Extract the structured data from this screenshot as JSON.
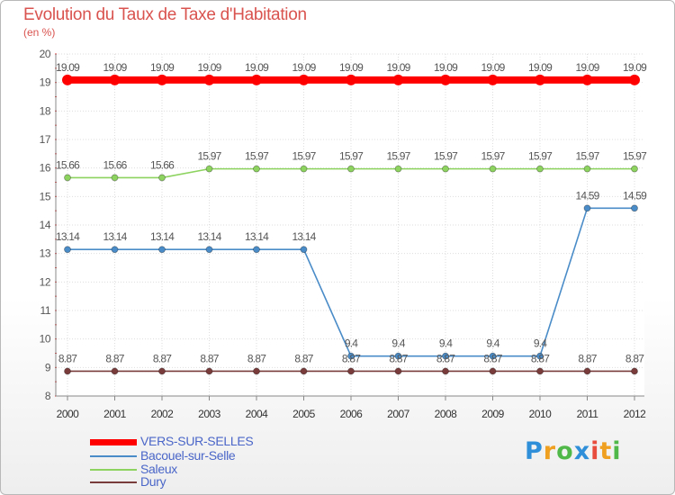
{
  "header": {
    "title": "Evolution du Taux de Taxe d'Habitation",
    "subtitle": "(en %)"
  },
  "chart_data": {
    "type": "line",
    "categories": [
      "2000",
      "2001",
      "2002",
      "2003",
      "2004",
      "2005",
      "2006",
      "2007",
      "2008",
      "2009",
      "2010",
      "2011",
      "2012"
    ],
    "ylim": [
      8,
      20
    ],
    "yticks": [
      8,
      9,
      10,
      11,
      12,
      13,
      14,
      15,
      16,
      17,
      18,
      19,
      20
    ],
    "grid": true,
    "legend_placement": "bottom-left",
    "series": [
      {
        "name": "VERS-SUR-SELLES",
        "color": "#ff0000",
        "values": [
          19.09,
          19.09,
          19.09,
          19.09,
          19.09,
          19.09,
          19.09,
          19.09,
          19.09,
          19.09,
          19.09,
          19.09,
          19.09
        ],
        "labels": [
          "19.09",
          "19.09",
          "19.09",
          "19.09",
          "19.09",
          "19.09",
          "19.09",
          "19.09",
          "19.09",
          "19.09",
          "19.09",
          "19.09",
          "19.09"
        ]
      },
      {
        "name": "Bacouel-sur-Selle",
        "color": "#4a8cc8",
        "values": [
          13.14,
          13.14,
          13.14,
          13.14,
          13.14,
          13.14,
          9.4,
          9.4,
          9.4,
          9.4,
          9.4,
          14.59,
          14.59
        ],
        "labels": [
          "13.14",
          "13.14",
          "13.14",
          "13.14",
          "13.14",
          "13.14",
          "9.4",
          "9.4",
          "9.4",
          "9.4",
          "9.4",
          "14.59",
          "14.59"
        ]
      },
      {
        "name": "Saleux",
        "color": "#8dd35f",
        "values": [
          15.66,
          15.66,
          15.66,
          15.97,
          15.97,
          15.97,
          15.97,
          15.97,
          15.97,
          15.97,
          15.97,
          15.97,
          15.97
        ],
        "labels": [
          "15.66",
          "15.66",
          "15.66",
          "15.97",
          "15.97",
          "15.97",
          "15.97",
          "15.97",
          "15.97",
          "15.97",
          "15.97",
          "15.97",
          "15.97"
        ]
      },
      {
        "name": "Dury",
        "color": "#7a3b3b",
        "values": [
          8.87,
          8.87,
          8.87,
          8.87,
          8.87,
          8.87,
          8.87,
          8.87,
          8.87,
          8.87,
          8.87,
          8.87,
          8.87
        ],
        "labels": [
          "8.87",
          "8.87",
          "8.87",
          "8.87",
          "8.87",
          "8.87",
          "8.87",
          "8.87",
          "8.87",
          "8.87",
          "8.87",
          "8.87",
          "8.87"
        ]
      }
    ]
  },
  "legend": {
    "items": [
      {
        "label": "VERS-SUR-SELLES",
        "color": "#ff0000"
      },
      {
        "label": "Bacouel-sur-Selle",
        "color": "#4a8cc8"
      },
      {
        "label": "Saleux",
        "color": "#8dd35f"
      },
      {
        "label": "Dury",
        "color": "#7a3b3b"
      }
    ]
  },
  "logo": {
    "letters": [
      "P",
      "r",
      "o",
      "x",
      "i",
      "t",
      "i"
    ],
    "colors": [
      "#2f8fd8",
      "#f0a020",
      "#50b848",
      "#2f8fd8",
      "#e84c3d",
      "#f0a020",
      "#50b848"
    ]
  }
}
